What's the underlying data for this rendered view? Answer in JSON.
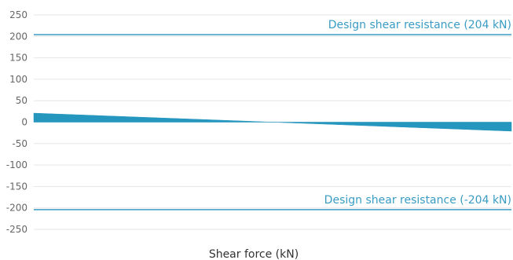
{
  "chart_data": {
    "type": "area",
    "title": "",
    "xlabel": "Shear force (kN)",
    "ylabel": "",
    "ylim": [
      -250,
      250
    ],
    "yticks": [
      250,
      200,
      150,
      100,
      50,
      0,
      -50,
      -100,
      -150,
      -200,
      -250
    ],
    "xlim": [
      0,
      1
    ],
    "grid": true,
    "legend": "none",
    "series": [
      {
        "values_x": [
          0,
          1
        ],
        "values_y": [
          21,
          -21
        ]
      }
    ],
    "reference_lines": [
      {
        "label": "Design shear resistance (204 kN)",
        "value": 204
      },
      {
        "label": "Design shear resistance (-204 kN)",
        "value": -204
      }
    ],
    "colors": {
      "area": "#2596be",
      "reference": "#3a9cc4",
      "grid": "#e6e6e6",
      "tick_text": "#666666",
      "title_text": "#333333"
    }
  }
}
